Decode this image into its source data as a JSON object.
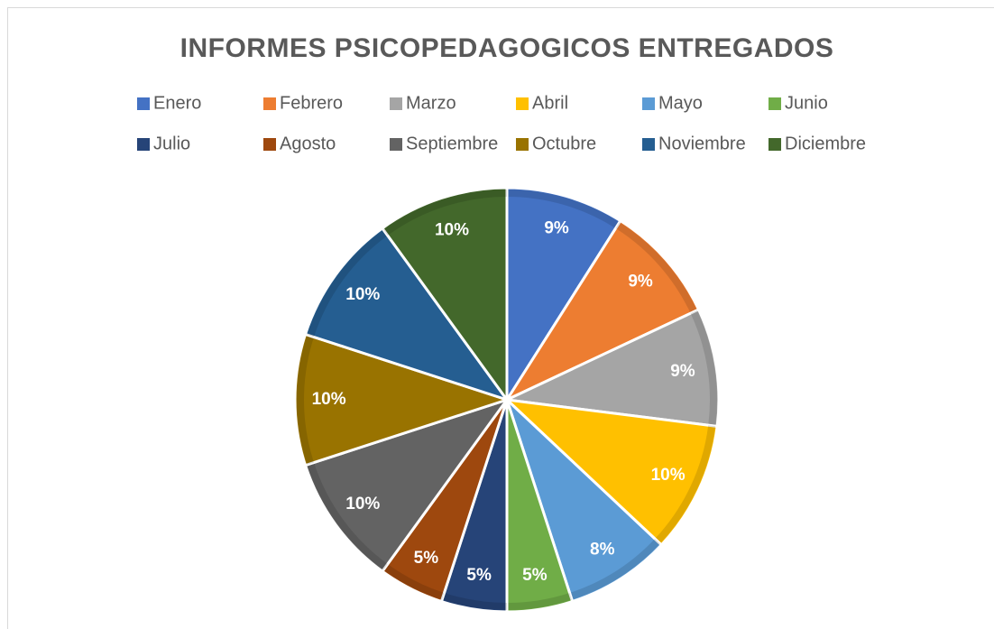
{
  "chart_data": {
    "type": "pie",
    "title": "INFORMES PSICOPEDAGOGICOS ENTREGADOS",
    "categories": [
      "Enero",
      "Febrero",
      "Marzo",
      "Abril",
      "Mayo",
      "Junio",
      "Julio",
      "Agosto",
      "Septiembre",
      "Octubre",
      "Noviembre",
      "Diciembre"
    ],
    "values": [
      9,
      9,
      9,
      10,
      8,
      5,
      5,
      5,
      10,
      10,
      10,
      10
    ],
    "value_labels": [
      "9%",
      "9%",
      "9%",
      "10%",
      "8%",
      "5%",
      "5%",
      "5%",
      "10%",
      "10%",
      "10%",
      "10%"
    ],
    "colors": [
      "#4472c4",
      "#ed7d31",
      "#a5a5a5",
      "#ffc000",
      "#5b9bd5",
      "#70ad47",
      "#264478",
      "#9e480e",
      "#636363",
      "#997300",
      "#255e91",
      "#43682b"
    ],
    "legend": "top"
  }
}
